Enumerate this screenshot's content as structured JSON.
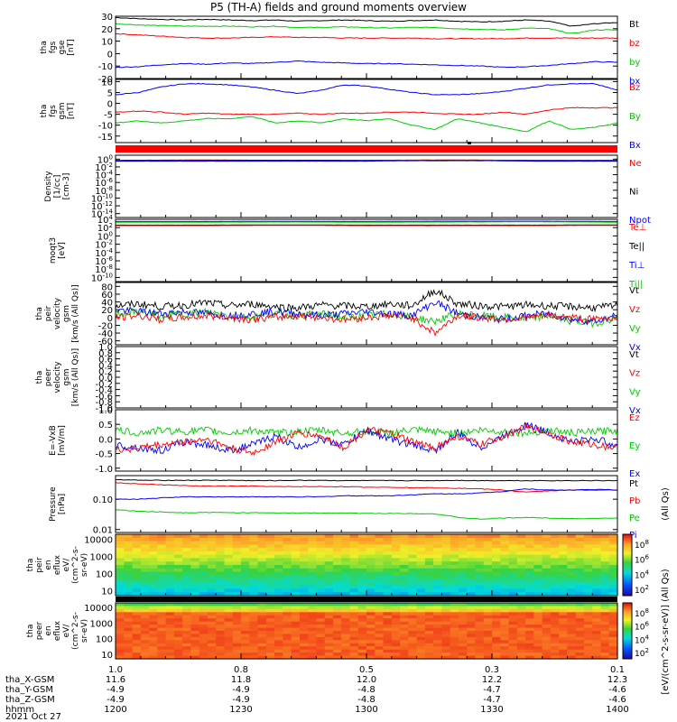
{
  "title": "P5 (TH-A) fields and ground moments overview",
  "date_label": "2021 Oct 27",
  "orbit_rows": [
    {
      "label": "tha_X-GSM",
      "values": [
        "11.6",
        "11.8",
        "12.0",
        "12.2",
        "12.3"
      ]
    },
    {
      "label": "tha_Y-GSM",
      "values": [
        "-4.9",
        "-4.9",
        "-4.8",
        "-4.7",
        "-4.6"
      ]
    },
    {
      "label": "tha_Z-GSM",
      "values": [
        "-4.9",
        "-4.9",
        "-4.8",
        "-4.7",
        "-4.6"
      ]
    },
    {
      "label": "hhmm",
      "values": [
        "1200",
        "1230",
        "1300",
        "1330",
        "1400"
      ]
    }
  ],
  "chart_data": [
    {
      "type": "line",
      "panel": "fgs_gse",
      "ylabel": [
        "tha",
        "fgs",
        "gse",
        "[nT]"
      ],
      "ylim": [
        -20,
        30
      ],
      "ticks": [
        30,
        20,
        10,
        0,
        -10,
        -20
      ],
      "legend": [
        {
          "name": "Bt",
          "color": "#000000"
        },
        {
          "name": "bz",
          "color": "#ff0000"
        },
        {
          "name": "by",
          "color": "#00cc00"
        },
        {
          "name": "bx",
          "color": "#0000ff"
        }
      ],
      "series": [
        {
          "name": "Bt",
          "color": "#000000",
          "values": [
            29,
            28,
            27.5,
            27,
            27.5,
            27,
            26.5,
            27,
            26,
            26.5,
            27,
            26.5,
            26,
            26.5,
            27,
            26,
            25.5,
            26,
            27,
            26,
            22,
            24,
            25
          ]
        },
        {
          "name": "bz",
          "color": "#ff0000",
          "values": [
            16,
            15,
            14,
            13,
            12.5,
            12.5,
            13,
            13.5,
            13,
            13,
            12.5,
            12.5,
            12.5,
            12.5,
            12,
            12,
            12,
            12,
            12.5,
            12.5,
            12.5,
            12.5,
            12.5
          ]
        },
        {
          "name": "by",
          "color": "#00cc00",
          "values": [
            24,
            23,
            22.5,
            22,
            22,
            22,
            21.5,
            22,
            21,
            21,
            21.5,
            21,
            20.5,
            21,
            21,
            20,
            19.5,
            19,
            20.5,
            20,
            16,
            19,
            19
          ]
        },
        {
          "name": "bx",
          "color": "#0000ff",
          "values": [
            -11,
            -10.5,
            -9,
            -8,
            -8.5,
            -7.5,
            -8,
            -7,
            -6,
            -7,
            -7.5,
            -8,
            -8,
            -8.5,
            -9,
            -9.5,
            -10,
            -11,
            -10.5,
            -9.5,
            -8,
            -6.5,
            -7
          ]
        }
      ]
    },
    {
      "type": "line",
      "panel": "fgs_gsm",
      "ylabel": [
        "tha",
        "fgs",
        "gsm",
        "[nT]"
      ],
      "ylim": [
        -18,
        11
      ],
      "ticks": [
        10,
        5,
        0,
        -5,
        -10,
        -15
      ],
      "legend": [
        {
          "name": "Bz",
          "color": "#ff0000"
        },
        {
          "name": "By",
          "color": "#00cc00"
        },
        {
          "name": "Bx",
          "color": "#0000ff"
        }
      ],
      "series": [
        {
          "name": "Bx",
          "color": "#0000ff",
          "values": [
            4,
            5,
            7.5,
            9,
            9,
            8.5,
            7.5,
            6,
            4.5,
            6,
            8.5,
            8,
            6.5,
            5,
            4,
            4,
            4.5,
            5.5,
            7,
            8.5,
            9,
            9,
            6
          ]
        },
        {
          "name": "Bz",
          "color": "#ff0000",
          "values": [
            -4,
            -3.5,
            -4,
            -5,
            -4.5,
            -5,
            -5,
            -5,
            -4.5,
            -5,
            -4.5,
            -4.5,
            -4,
            -4,
            -4.5,
            -5,
            -5,
            -4,
            -5,
            -3,
            -2,
            -2,
            -2
          ]
        },
        {
          "name": "By",
          "color": "#00cc00",
          "values": [
            -9,
            -8,
            -9,
            -8,
            -7,
            -7,
            -6,
            -9,
            -8,
            -9,
            -7,
            -8,
            -7,
            -10,
            -12,
            -7,
            -9,
            -11,
            -13,
            -8,
            -12,
            -11,
            -9
          ]
        }
      ]
    },
    {
      "type": "line",
      "panel": "density",
      "ylabel": [
        "Density",
        "[1/cc]",
        "[cm-3]"
      ],
      "scale": "log",
      "ylim": [
        1e-15,
        10
      ],
      "ticks": [
        "10^0",
        "10^-2",
        "10^-4",
        "10^-6",
        "10^-8",
        "10^-10",
        "10^-12",
        "10^-14"
      ],
      "legend": [
        {
          "name": "Ne",
          "color": "#ff0000"
        },
        {
          "name": "Ni",
          "color": "#000000"
        },
        {
          "name": "Npot",
          "color": "#0000ff"
        }
      ],
      "series": [
        {
          "name": "Ne",
          "color": "#ff0000",
          "values": [
            0.5,
            0.6,
            0.5,
            0.5,
            0.6,
            0.5,
            0.5
          ]
        },
        {
          "name": "Ni",
          "color": "#000000",
          "values": [
            0.4,
            0.4,
            0.5,
            0.4,
            0.4,
            0.4,
            0.4
          ]
        },
        {
          "name": "Npot",
          "color": "#0000ff",
          "values": [
            0.3,
            0.3,
            0.3,
            0.3,
            0.5,
            0.3,
            0.3
          ]
        }
      ]
    },
    {
      "type": "line",
      "panel": "temperature",
      "ylabel": [
        "moqt3",
        "[eV]"
      ],
      "scale": "log",
      "ylim": [
        1e-11,
        10000
      ],
      "ticks": [
        "10^4",
        "10^2",
        "10^0",
        "10^-2",
        "10^-4",
        "10^-6",
        "10^-8",
        "10^-10"
      ],
      "legend": [
        {
          "name": "Te⊥",
          "color": "#ff0000"
        },
        {
          "name": "Te||",
          "color": "#000000"
        },
        {
          "name": "Ti⊥",
          "color": "#0000ff"
        },
        {
          "name": "Ti||",
          "color": "#00cc00"
        }
      ],
      "series": [
        {
          "name": "Ti⊥",
          "color": "#0000ff",
          "values": [
            3000,
            3000,
            3200,
            3000,
            3500,
            3500,
            3000
          ]
        },
        {
          "name": "Ti||",
          "color": "#00cc00",
          "values": [
            2000,
            2000,
            2200,
            2000,
            2200,
            2500,
            2000
          ]
        },
        {
          "name": "Te||",
          "color": "#000000",
          "values": [
            400,
            400,
            450,
            400,
            400,
            400,
            450
          ]
        },
        {
          "name": "Te⊥",
          "color": "#ff0000",
          "values": [
            300,
            300,
            350,
            300,
            300,
            300,
            350
          ]
        }
      ]
    },
    {
      "type": "line",
      "panel": "peir_velocity",
      "ylabel": [
        "tha",
        "peir",
        "velocity",
        "gsm",
        "[km/s (All Qs)]"
      ],
      "ylim": [
        -70,
        90
      ],
      "ticks": [
        80,
        60,
        40,
        20,
        0,
        -20,
        -40,
        -60
      ],
      "legend": [
        {
          "name": "Vt",
          "color": "#000000"
        },
        {
          "name": "Vz",
          "color": "#ff0000"
        },
        {
          "name": "Vy",
          "color": "#00cc00"
        },
        {
          "name": "Vx",
          "color": "#0000ff"
        }
      ],
      "series": [
        {
          "name": "Vt",
          "color": "#000000",
          "values": [
            30,
            35,
            28,
            32,
            38,
            30,
            35,
            28,
            25,
            32,
            30,
            28,
            35,
            30,
            70,
            35,
            30,
            28,
            32,
            30,
            28,
            25,
            30
          ]
        },
        {
          "name": "Vy",
          "color": "#00cc00",
          "values": [
            10,
            15,
            5,
            10,
            15,
            5,
            0,
            10,
            5,
            10,
            0,
            5,
            10,
            0,
            -10,
            10,
            5,
            0,
            -5,
            5,
            -10,
            -15,
            0
          ]
        },
        {
          "name": "Vx",
          "color": "#0000ff",
          "values": [
            20,
            15,
            10,
            15,
            10,
            5,
            10,
            15,
            10,
            5,
            10,
            15,
            10,
            5,
            40,
            10,
            0,
            -5,
            5,
            10,
            -5,
            -10,
            5
          ]
        },
        {
          "name": "Vz",
          "color": "#ff0000",
          "values": [
            0,
            5,
            -5,
            0,
            5,
            0,
            -5,
            0,
            5,
            0,
            -5,
            0,
            5,
            0,
            -40,
            5,
            0,
            -5,
            0,
            5,
            0,
            -5,
            0
          ]
        }
      ]
    },
    {
      "type": "line",
      "panel": "peer_velocity",
      "ylabel": [
        "tha",
        "peer",
        "velocity",
        "gsm",
        "[km/s (All Qs)]"
      ],
      "ylim": [
        -1,
        1
      ],
      "ticks": [
        "1.0",
        "0.8",
        "0.6",
        "0.4",
        "0.2",
        "0.0",
        "-0.2",
        "-0.4",
        "-0.6",
        "-0.8",
        "-1.0"
      ],
      "legend": [
        {
          "name": "Vt",
          "color": "#000000"
        },
        {
          "name": "Vz",
          "color": "#ff0000"
        },
        {
          "name": "Vy",
          "color": "#00cc00"
        },
        {
          "name": "Vx",
          "color": "#0000ff"
        }
      ],
      "series": []
    },
    {
      "type": "line",
      "panel": "efield",
      "ylabel": [
        "E=-VxB",
        "[mV/m]"
      ],
      "ylim": [
        -1.1,
        1.0
      ],
      "ticks": [
        "1.0",
        "0.5",
        "0.0",
        "-0.5",
        "-1.0"
      ],
      "legend": [
        {
          "name": "Ez",
          "color": "#ff0000"
        },
        {
          "name": "Ey",
          "color": "#00cc00"
        },
        {
          "name": "Ex",
          "color": "#0000ff"
        }
      ],
      "series": [
        {
          "name": "Ey",
          "color": "#00cc00",
          "values": [
            0.3,
            0.2,
            0.3,
            0.25,
            0.3,
            0.2,
            0.3,
            0.2,
            0.25,
            0.3,
            0.2,
            0.25,
            0.2,
            0.3,
            0.25,
            0.2,
            0.3,
            0.25,
            0.2,
            0.3,
            0.2,
            0.25,
            0.3
          ]
        },
        {
          "name": "Ex",
          "color": "#0000ff",
          "values": [
            -0.2,
            -0.3,
            -0.4,
            -0.1,
            -0.2,
            -0.4,
            -0.2,
            0.1,
            -0.3,
            0.0,
            -0.2,
            0.3,
            0.0,
            -0.2,
            -0.4,
            0.2,
            -0.3,
            0.1,
            0.5,
            0.2,
            -0.1,
            0.0,
            -0.2
          ]
        },
        {
          "name": "Ez",
          "color": "#ff0000",
          "values": [
            -0.4,
            -0.3,
            -0.2,
            -0.1,
            0.0,
            -0.3,
            -0.5,
            -0.1,
            0.2,
            0.1,
            -0.3,
            0.3,
            0.2,
            -0.1,
            -0.3,
            0.1,
            -0.2,
            0.1,
            0.4,
            0.2,
            -0.1,
            -0.2,
            -0.3
          ]
        }
      ]
    },
    {
      "type": "line",
      "panel": "pressure",
      "ylabel": [
        "Pressure",
        "[nPa]"
      ],
      "scale": "log",
      "ylim": [
        0.008,
        0.6
      ],
      "ticks": [
        "0.10",
        "0.01"
      ],
      "legend": [
        {
          "name": "Pt",
          "color": "#000000"
        },
        {
          "name": "Pb",
          "color": "#ff0000"
        },
        {
          "name": "Pe",
          "color": "#00cc00"
        },
        {
          "name": "Pi",
          "color": "#0000ff"
        }
      ],
      "extra_label": "(All Qs)",
      "series": [
        {
          "name": "Pt",
          "color": "#000000",
          "values": [
            0.45,
            0.42,
            0.42,
            0.42,
            0.42,
            0.42,
            0.41,
            0.41,
            0.42,
            0.42,
            0.41,
            0.41,
            0.41,
            0.41,
            0.41,
            0.42,
            0.41,
            0.41,
            0.41,
            0.41,
            0.41,
            0.41,
            0.41
          ]
        },
        {
          "name": "Pb",
          "color": "#ff0000",
          "values": [
            0.35,
            0.32,
            0.3,
            0.28,
            0.27,
            0.27,
            0.27,
            0.26,
            0.26,
            0.26,
            0.26,
            0.25,
            0.25,
            0.24,
            0.24,
            0.23,
            0.22,
            0.2,
            0.17,
            0.19,
            0.2,
            0.2,
            0.2
          ]
        },
        {
          "name": "Pi",
          "color": "#0000ff",
          "values": [
            0.1,
            0.1,
            0.11,
            0.12,
            0.12,
            0.12,
            0.12,
            0.12,
            0.12,
            0.12,
            0.13,
            0.13,
            0.13,
            0.14,
            0.15,
            0.15,
            0.16,
            0.18,
            0.22,
            0.2,
            0.2,
            0.21,
            0.2
          ]
        },
        {
          "name": "Pe",
          "color": "#00cc00",
          "values": [
            0.045,
            0.04,
            0.038,
            0.036,
            0.037,
            0.036,
            0.036,
            0.035,
            0.035,
            0.035,
            0.035,
            0.034,
            0.034,
            0.034,
            0.033,
            0.025,
            0.022,
            0.024,
            0.025,
            0.024,
            0.023,
            0.023,
            0.024
          ]
        }
      ]
    },
    {
      "type": "heatmap",
      "panel": "peir_eflux",
      "ylabel": [
        "tha",
        "peir",
        "en",
        "eflux",
        "eV/",
        "(cm^2-s-",
        "sr-eV)"
      ],
      "scale": "log",
      "ylim": [
        5,
        20000
      ],
      "ticks": [
        "10000",
        "1000",
        "100",
        "10"
      ]
    },
    {
      "type": "heatmap",
      "panel": "peer_eflux",
      "ylabel": [
        "tha",
        "peer",
        "en",
        "eflux",
        "eV/",
        "(cm^2-s-",
        "sr-eV)"
      ],
      "scale": "log",
      "ylim": [
        5,
        20000
      ],
      "ticks": [
        "10000",
        "1000",
        "100",
        "10"
      ]
    }
  ],
  "colorbar": {
    "label": "[eV/(cm^2-s-sr-eV)] (All Qs)",
    "ticks_upper": [
      "10^8",
      "10^6",
      "10^4",
      "10^2"
    ],
    "ticks_lower": [
      "10^8",
      "10^6",
      "10^4",
      "10^2"
    ]
  },
  "xaxis": {
    "tick_labels_top": [
      "1.0",
      "0.8",
      "0.5",
      "0.3",
      "0.1"
    ]
  }
}
